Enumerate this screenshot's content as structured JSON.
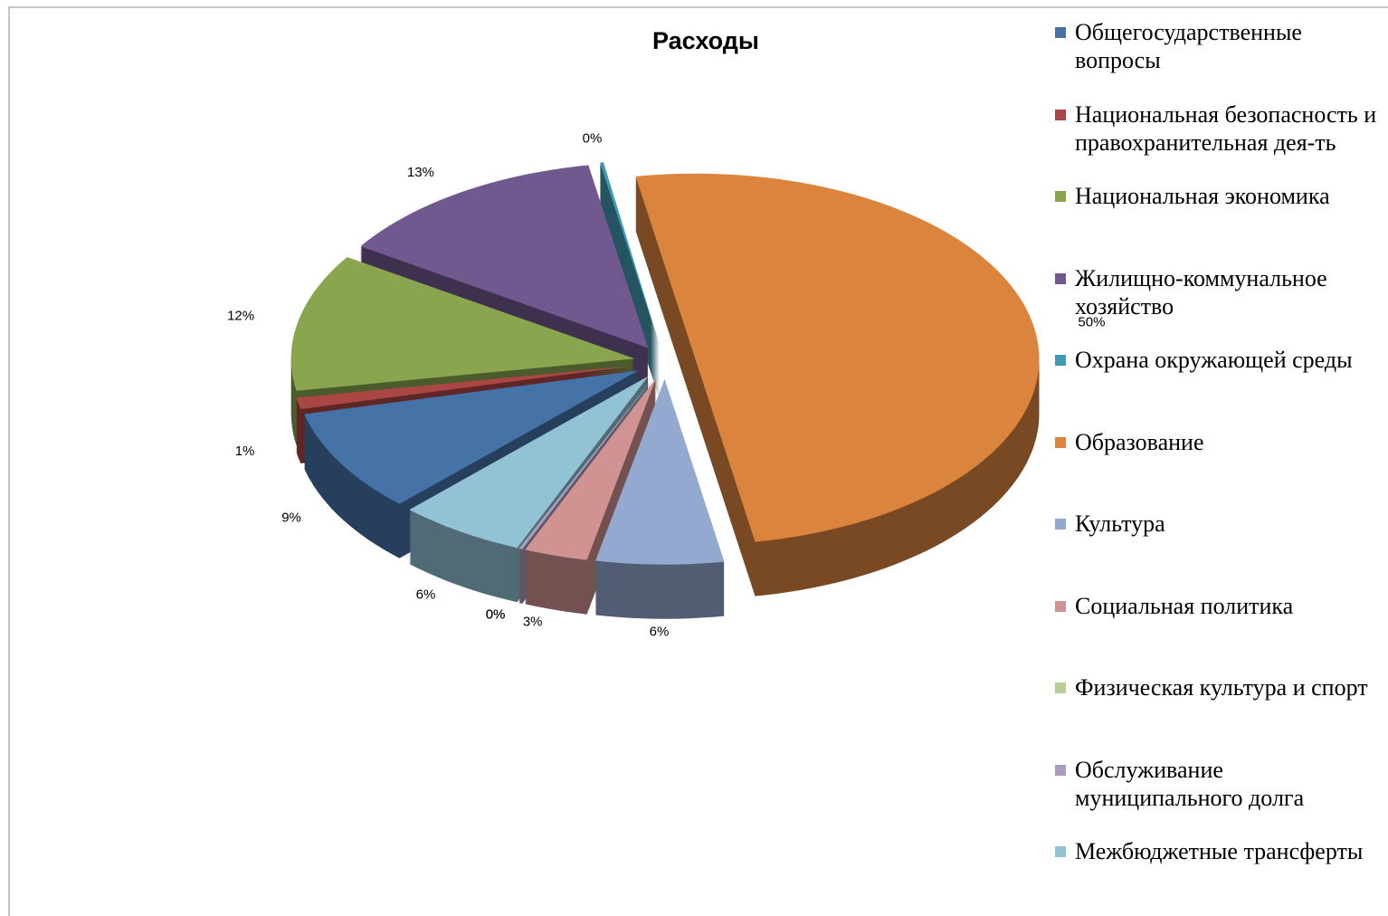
{
  "chart_data": {
    "type": "pie",
    "title": "Расходы",
    "categories": [
      "Общегосударственные вопросы",
      "Национальная безопасность и правохранительная дея-ть",
      "Национальная экономика",
      "Жилищно-коммунальное хозяйство",
      "Охрана окружающей среды",
      "Образование",
      "Культура",
      "Социальная политика",
      "Физическая культура и спорт",
      "Обслуживание муниципального долга",
      "Межбюджетные трансферты"
    ],
    "values": [
      9,
      1,
      12,
      13,
      0,
      50,
      6,
      3,
      0,
      0,
      6
    ],
    "value_labels": [
      "9%",
      "1%",
      "12%",
      "13%",
      "0%",
      "50%",
      "6%",
      "3%",
      "0%",
      "0%",
      "6%"
    ],
    "colors": [
      "#4572A7",
      "#AA4643",
      "#89A54E",
      "#71588F",
      "#4198AF",
      "#DB843D",
      "#93A9CF",
      "#D19392",
      "#B9CD96",
      "#A99BBD",
      "#92C3D4"
    ],
    "legend": "right"
  }
}
